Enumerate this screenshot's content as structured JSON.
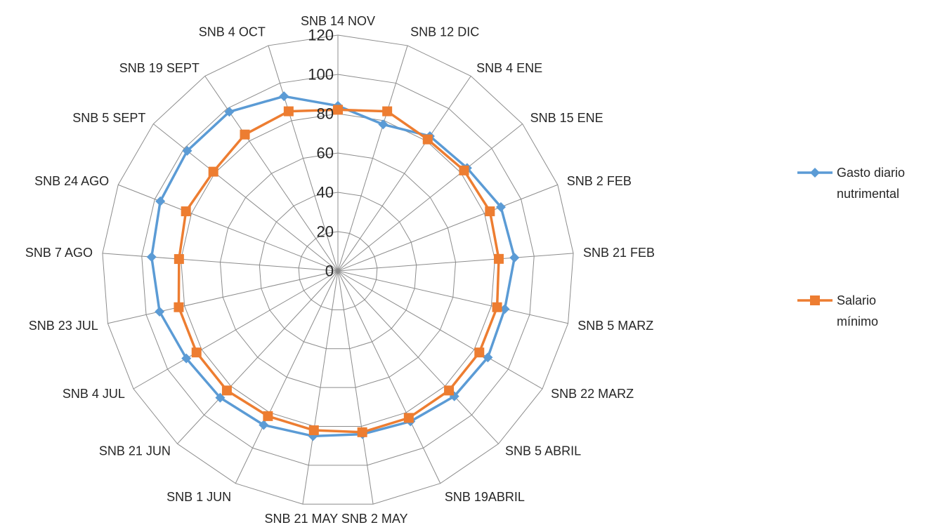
{
  "chart_data": {
    "type": "radar",
    "categories": [
      "SNB 14 NOV",
      "SNB 12 DIC",
      "SNB 4 ENE",
      "SNB 15 ENE",
      "SNB 2 FEB",
      "SNB 21 FEB",
      "SNB 5 MARZ",
      "SNB 22 MARZ",
      "SNB 5 ABRIL",
      "SNB 19ABRIL",
      "SNB 2 MAY",
      "SNB 21 MAY",
      "SNB 1 JUN",
      "SNB 21 JUN",
      "SNB 4 JUL",
      "SNB 23 JUL",
      "SNB 7 AGO",
      "SNB 24 AGO",
      "SNB 5 SEPT",
      "SNB 19 SEPT",
      "SNB 4 OCT"
    ],
    "series": [
      {
        "name": [
          "Gasto diario",
          "nutrimental"
        ],
        "color": "#5B9BD5",
        "marker": "diamond",
        "values": [
          84,
          78,
          83,
          84,
          89,
          90,
          87,
          88,
          87,
          85,
          84,
          85,
          87,
          88,
          89,
          93,
          95,
          97,
          98,
          98,
          93
        ]
      },
      {
        "name": [
          "Salario",
          "mínimo"
        ],
        "color": "#ED7D31",
        "marker": "square",
        "values": [
          82,
          85,
          81,
          82,
          83,
          82,
          83,
          83,
          83,
          83,
          83,
          82,
          82,
          83,
          83,
          83,
          81,
          83,
          81,
          84,
          85
        ]
      }
    ],
    "ticks": [
      "0",
      "20",
      "40",
      "60",
      "80",
      "100",
      "120"
    ],
    "ylim": [
      0,
      120
    ],
    "grid": true,
    "legend_position": "right"
  }
}
